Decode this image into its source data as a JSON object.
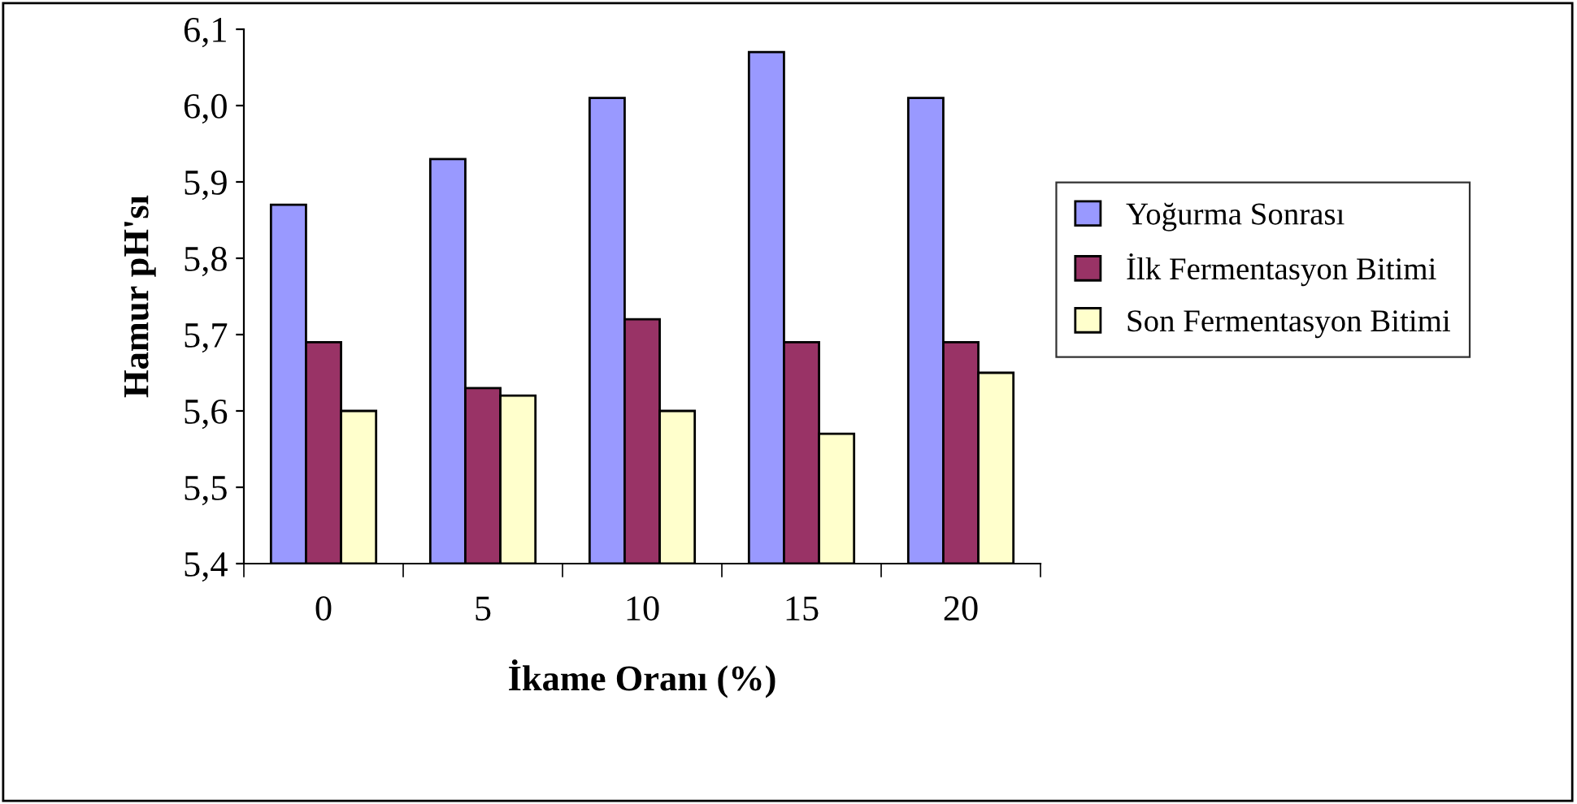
{
  "chart_data": {
    "type": "bar",
    "xlabel": "İkame Oranı (%)",
    "ylabel": "Hamur pH'sı",
    "categories": [
      "0",
      "5",
      "10",
      "15",
      "20"
    ],
    "series": [
      {
        "name": "Yoğurma Sonrası",
        "color": "#9999ff",
        "values": [
          5.87,
          5.93,
          6.01,
          6.07,
          6.01
        ]
      },
      {
        "name": "İlk Fermentasyon Bitimi",
        "color": "#993366",
        "values": [
          5.69,
          5.63,
          5.72,
          5.69,
          5.69
        ]
      },
      {
        "name": "Son Fermentasyon Bitimi",
        "color": "#ffffcc",
        "values": [
          5.6,
          5.62,
          5.6,
          5.57,
          5.65
        ]
      }
    ],
    "ylim": [
      5.4,
      6.1
    ],
    "yticks": [
      {
        "value": 5.4,
        "label": "5,4"
      },
      {
        "value": 5.5,
        "label": "5,5"
      },
      {
        "value": 5.6,
        "label": "5,6"
      },
      {
        "value": 5.7,
        "label": "5,7"
      },
      {
        "value": 5.8,
        "label": "5,8"
      },
      {
        "value": 5.9,
        "label": "5,9"
      },
      {
        "value": 6.0,
        "label": "6,0"
      },
      {
        "value": 6.1,
        "label": "6,1"
      }
    ],
    "grid": false,
    "legend": "right"
  }
}
